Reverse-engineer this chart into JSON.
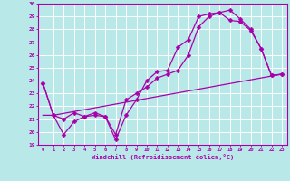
{
  "xlabel": "Windchill (Refroidissement éolien,°C)",
  "xlim": [
    -0.5,
    23.5
  ],
  "ylim": [
    19,
    30
  ],
  "yticks": [
    19,
    20,
    21,
    22,
    23,
    24,
    25,
    26,
    27,
    28,
    29,
    30
  ],
  "xticks": [
    0,
    1,
    2,
    3,
    4,
    5,
    6,
    7,
    8,
    9,
    10,
    11,
    12,
    13,
    14,
    15,
    16,
    17,
    18,
    19,
    20,
    21,
    22,
    23
  ],
  "background_color": "#b8e8e8",
  "grid_color": "#ffffff",
  "line_color": "#aa00aa",
  "line1_x": [
    0,
    1,
    2,
    3,
    4,
    5,
    6,
    7,
    8,
    9,
    10,
    11,
    12,
    13,
    14,
    15,
    16,
    17,
    18,
    19,
    20,
    21,
    22,
    23
  ],
  "line1_y": [
    23.8,
    21.3,
    19.8,
    20.8,
    21.2,
    21.3,
    21.2,
    19.4,
    21.3,
    22.5,
    24.0,
    24.7,
    24.8,
    26.6,
    27.2,
    29.0,
    29.2,
    29.3,
    29.5,
    28.8,
    28.0,
    26.5,
    24.4,
    24.5
  ],
  "line2_x": [
    0,
    1,
    2,
    3,
    4,
    5,
    6,
    7,
    8,
    9,
    10,
    11,
    12,
    13,
    14,
    15,
    16,
    17,
    18,
    19,
    20,
    21,
    22,
    23
  ],
  "line2_y": [
    23.8,
    21.3,
    21.0,
    21.5,
    21.2,
    21.5,
    21.2,
    19.8,
    22.5,
    23.0,
    23.5,
    24.2,
    24.5,
    24.8,
    26.0,
    28.2,
    29.0,
    29.3,
    28.7,
    28.6,
    27.9,
    26.5,
    24.4,
    24.5
  ],
  "line3_x": [
    0,
    1,
    23
  ],
  "line3_y": [
    21.3,
    21.3,
    24.5
  ],
  "marker": "D",
  "markersize": 2.5,
  "linewidth": 0.9
}
